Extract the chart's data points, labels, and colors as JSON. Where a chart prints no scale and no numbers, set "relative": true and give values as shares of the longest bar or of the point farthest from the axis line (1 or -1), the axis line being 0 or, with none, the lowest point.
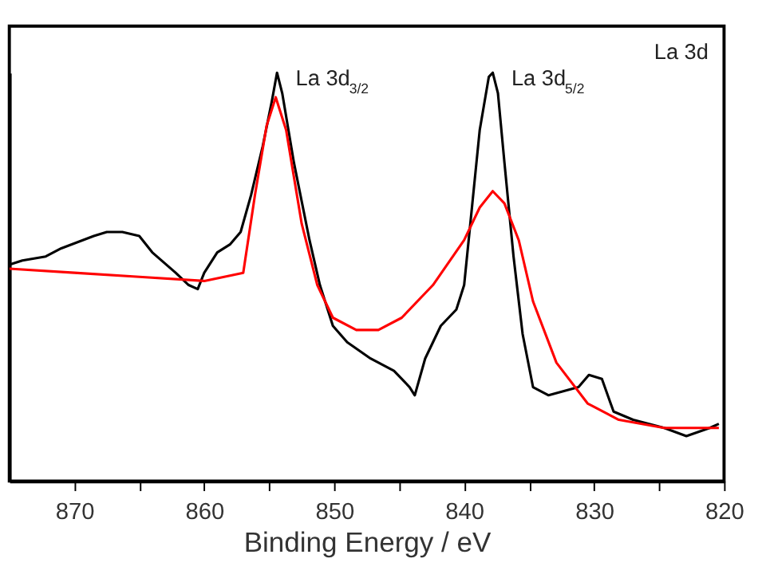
{
  "chart_data": {
    "type": "line",
    "xlabel": "Binding Energy / eV",
    "relative": true,
    "grid": false,
    "tick_labels": "x",
    "xlim": [
      875,
      820
    ],
    "xticks": [
      870,
      {
        "value": 865,
        "label": null
      },
      860,
      {
        "value": 855,
        "label": null
      },
      850,
      {
        "value": 845,
        "label": null
      },
      840,
      {
        "value": 835,
        "label": null
      },
      830,
      {
        "value": 825,
        "label": null
      },
      820
    ],
    "series": [
      {
        "color": "#000000",
        "x": [
          875,
          874,
          872.2,
          871,
          868.5,
          867.5,
          866.3,
          865,
          864,
          862.2,
          861.2,
          860.5,
          860,
          859,
          858,
          857.2,
          856.4,
          855.5,
          854.8,
          854.4,
          854,
          853.1,
          851.9,
          851.1,
          850.1,
          849,
          847.2,
          845.4,
          844.2,
          843.8,
          843,
          841.8,
          840.6,
          840,
          839.4,
          838.8,
          838.1,
          837.8,
          837.4,
          836.9,
          836.2,
          835.5,
          834.7,
          833.5,
          831.2,
          830.4,
          829.4,
          828.5,
          827,
          824.6,
          822.9,
          821.1,
          820.4
        ],
        "values": [
          0.53,
          0.54,
          0.55,
          0.57,
          0.6,
          0.61,
          0.61,
          0.6,
          0.56,
          0.51,
          0.48,
          0.47,
          0.51,
          0.56,
          0.58,
          0.61,
          0.7,
          0.82,
          0.93,
          1.0,
          0.95,
          0.78,
          0.59,
          0.48,
          0.38,
          0.34,
          0.3,
          0.27,
          0.23,
          0.21,
          0.3,
          0.38,
          0.42,
          0.48,
          0.67,
          0.86,
          0.99,
          1.0,
          0.95,
          0.78,
          0.55,
          0.36,
          0.23,
          0.21,
          0.23,
          0.26,
          0.25,
          0.17,
          0.15,
          0.13,
          0.11,
          0.13,
          0.14
        ]
      },
      {
        "color": "#ff0000",
        "x": [
          875,
          870,
          865,
          860,
          857,
          856.1,
          855.2,
          854.5,
          853.7,
          852.5,
          851.3,
          850.1,
          848.3,
          846.6,
          844.8,
          842.4,
          840,
          838.8,
          837.8,
          836.9,
          835.8,
          834.7,
          832.9,
          830.5,
          828.1,
          824.6,
          820.4
        ],
        "values": [
          0.52,
          0.51,
          0.5,
          0.49,
          0.51,
          0.7,
          0.87,
          0.94,
          0.86,
          0.63,
          0.48,
          0.4,
          0.37,
          0.37,
          0.4,
          0.48,
          0.59,
          0.67,
          0.71,
          0.68,
          0.59,
          0.44,
          0.29,
          0.19,
          0.15,
          0.13,
          0.13
        ]
      }
    ],
    "annotations": [
      {
        "text": "La 3d$_{3/2}$",
        "x": 854.4,
        "y": 1.0
      },
      {
        "text": "La 3d$_{5/2}$",
        "x": 837.8,
        "y": 1.0
      },
      "La 3d"
    ]
  }
}
